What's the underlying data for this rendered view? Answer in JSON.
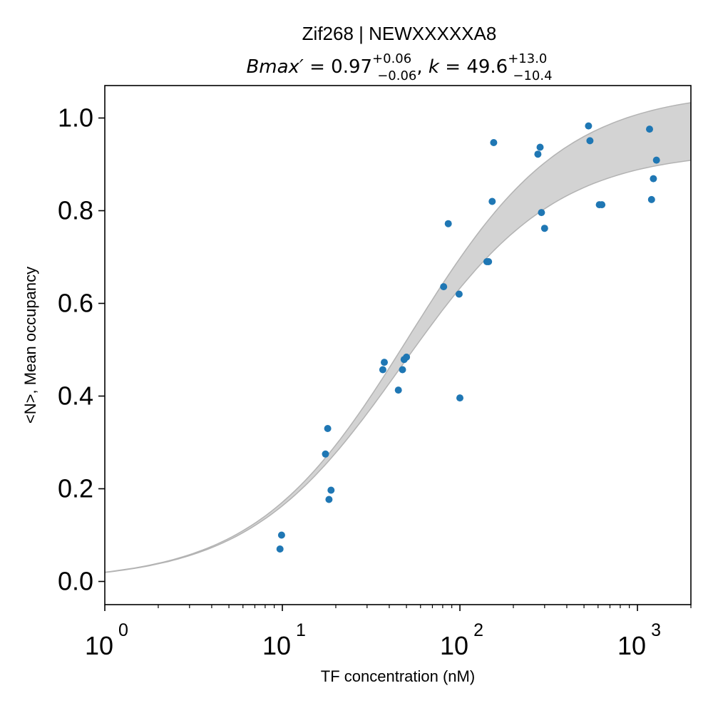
{
  "chart_data": {
    "type": "scatter",
    "title": "Zif268 | NEWXXXXXA8",
    "subtitle": {
      "bmax_symbol": "Bmax′",
      "bmax_value": "0.97",
      "bmax_plus": "+0.06",
      "bmax_minus": "−0.06",
      "k_symbol": "k",
      "k_value": "49.6",
      "k_plus": "+13.0",
      "k_minus": "−10.4"
    },
    "xlabel": "TF concentration (nM)",
    "ylabel": "<N>, Mean occupancy",
    "xscale": "log",
    "xlim": [
      1,
      2000
    ],
    "ylim": [
      -0.05,
      1.07
    ],
    "x_tick_labels": [
      {
        "value": 1,
        "base": "10",
        "exp": "0"
      },
      {
        "value": 10,
        "base": "10",
        "exp": "1"
      },
      {
        "value": 100,
        "base": "10",
        "exp": "2"
      },
      {
        "value": 1000,
        "base": "10",
        "exp": "3"
      }
    ],
    "y_ticks": [
      0.0,
      0.2,
      0.4,
      0.6,
      0.8,
      1.0
    ],
    "y_tick_labels": [
      "0.0",
      "0.2",
      "0.4",
      "0.6",
      "0.8",
      "1.0"
    ],
    "grid": false,
    "point_color": "#1f77b4",
    "band_fill": "#d3d3d3",
    "band_edge": "#b3b3b3",
    "band": {
      "description_model": "Bmax*x/(x+k)",
      "upper": {
        "bmax": 1.06,
        "k": 52.0
      },
      "lower": {
        "bmax": 0.93,
        "k": 47.0
      }
    },
    "points": [
      {
        "x": 9.7,
        "y": 0.07
      },
      {
        "x": 9.9,
        "y": 0.1
      },
      {
        "x": 17.5,
        "y": 0.275
      },
      {
        "x": 18.0,
        "y": 0.33
      },
      {
        "x": 18.3,
        "y": 0.177
      },
      {
        "x": 18.8,
        "y": 0.197
      },
      {
        "x": 36.8,
        "y": 0.457
      },
      {
        "x": 37.5,
        "y": 0.473
      },
      {
        "x": 45.0,
        "y": 0.413
      },
      {
        "x": 47.5,
        "y": 0.457
      },
      {
        "x": 48.5,
        "y": 0.479
      },
      {
        "x": 50.0,
        "y": 0.484
      },
      {
        "x": 81.0,
        "y": 0.636
      },
      {
        "x": 86.0,
        "y": 0.772
      },
      {
        "x": 99.0,
        "y": 0.62
      },
      {
        "x": 100.0,
        "y": 0.396
      },
      {
        "x": 142.0,
        "y": 0.69
      },
      {
        "x": 145.0,
        "y": 0.69
      },
      {
        "x": 152.0,
        "y": 0.82
      },
      {
        "x": 155.0,
        "y": 0.947
      },
      {
        "x": 275.0,
        "y": 0.922
      },
      {
        "x": 283.0,
        "y": 0.937
      },
      {
        "x": 288.0,
        "y": 0.796
      },
      {
        "x": 300.0,
        "y": 0.762
      },
      {
        "x": 530.0,
        "y": 0.983
      },
      {
        "x": 540.0,
        "y": 0.951
      },
      {
        "x": 610.0,
        "y": 0.813
      },
      {
        "x": 630.0,
        "y": 0.813
      },
      {
        "x": 1170.0,
        "y": 0.976
      },
      {
        "x": 1200.0,
        "y": 0.824
      },
      {
        "x": 1230.0,
        "y": 0.869
      },
      {
        "x": 1280.0,
        "y": 0.909
      }
    ]
  }
}
